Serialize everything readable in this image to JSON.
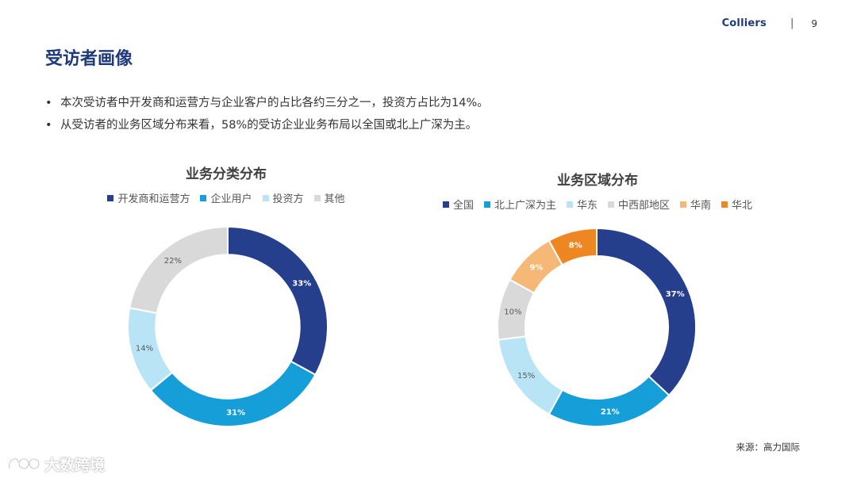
{
  "header": {
    "brand": "Colliers",
    "separator": "|",
    "page_number": "9"
  },
  "page_title": "受访者画像",
  "bullets": [
    "本次受访者中开发商和运营方与企业客户的占比各约三分之一，投资方占比为14%。",
    "从受访者的业务区域分布来看，58%的受访企业业务布局以全国或北上广深为主。"
  ],
  "bullet_char": "•",
  "chart_data": [
    {
      "type": "pie",
      "donut": true,
      "title": "业务分类分布",
      "categories": [
        "开发商和运营方",
        "企业用户",
        "投资方",
        "其他"
      ],
      "values": [
        33,
        31,
        14,
        22
      ],
      "labels": [
        "33%",
        "31%",
        "14%",
        "22%"
      ],
      "colors": [
        "#253f8d",
        "#169ed8",
        "#b9e4f5",
        "#d9d9d9"
      ],
      "label_colors": [
        "#ffffff",
        "#ffffff",
        "#595959",
        "#595959"
      ],
      "legend_position": "top"
    },
    {
      "type": "pie",
      "donut": true,
      "title": "业务区域分布",
      "categories": [
        "全国",
        "北上广深为主",
        "华东",
        "中西部地区",
        "华南",
        "华北"
      ],
      "values": [
        37,
        21,
        15,
        10,
        9,
        8
      ],
      "labels": [
        "37%",
        "21%",
        "15%",
        "10%",
        "9%",
        "8%"
      ],
      "colors": [
        "#253f8d",
        "#169ed8",
        "#b9e4f5",
        "#d9d9d9",
        "#f6b877",
        "#ee8722"
      ],
      "label_colors": [
        "#ffffff",
        "#ffffff",
        "#595959",
        "#595959",
        "#ffffff",
        "#ffffff"
      ],
      "legend_position": "top"
    }
  ],
  "source": "来源：高力国际",
  "watermark": "大数跨境"
}
